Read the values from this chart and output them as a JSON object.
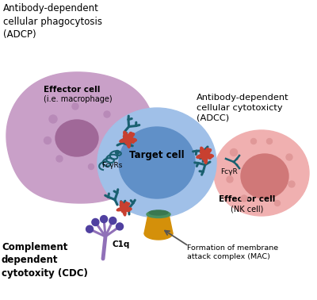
{
  "background_color": "#ffffff",
  "adcp_label": "Antibody-dependent\ncellular phagocytosis\n(ADCP)",
  "adcc_label": "Antibody-dependent\ncellular cytotoxicty\n(ADCC)",
  "cdc_label": "Complement\ndependent\ncytotoxity (CDC)",
  "effector_cell_macro_bold": "Effector cell",
  "effector_cell_macro_normal": "(i.e. macrophage)",
  "effector_cell_nk_bold": "Effector cell",
  "effector_cell_nk_normal": "(NK cell)",
  "target_cell_label": "Target cell",
  "fcyrs_label": "FcγRs",
  "fcyr_label": "FcγR",
  "c1q_label": "C1q",
  "mac_label": "Formation of membrane\nattack complex (MAC)",
  "macrophage_body_color": "#c9a0c8",
  "macrophage_nucleus_color": "#a06898",
  "macrophage_dots_color": "#b88ab8",
  "target_cell_outer_color": "#a0c0e8",
  "target_cell_inner_color": "#6090c8",
  "nk_cell_outer_color": "#f0b0b0",
  "nk_cell_inner_color": "#d07878",
  "nk_dots_color": "#e09898",
  "antibody_color": "#1a6070",
  "antigen_color": "#c84030",
  "c1q_stem_color": "#9070b8",
  "c1q_ball_color": "#5040a0",
  "mac_bell_color": "#d4900a",
  "mac_cap_color": "#4a9060",
  "fcyr_connector_color": "#1a6070",
  "arrow_color": "#555555"
}
